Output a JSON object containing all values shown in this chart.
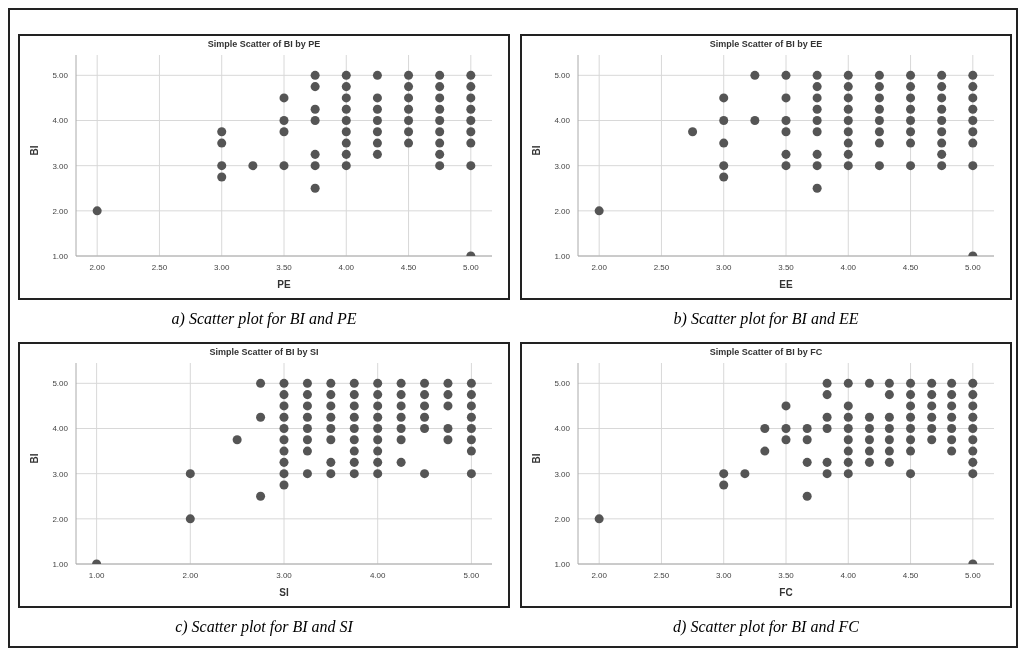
{
  "chart_data": [
    {
      "type": "scatter",
      "title": "Simple Scatter of BI by PE",
      "xlabel": "PE",
      "ylabel": "BI",
      "annotations": [
        "a) Scatter plot for BI and PE"
      ],
      "grid": true,
      "marker": "circle",
      "xlim": [
        1.83,
        5.17
      ],
      "ylim": [
        1,
        5.45
      ],
      "xticks": [
        {
          "value": 2,
          "label": "2.00"
        },
        {
          "value": 2.5,
          "label": "2.50"
        },
        {
          "value": 3,
          "label": "3.00"
        },
        {
          "value": 3.5,
          "label": "3.50"
        },
        {
          "value": 4,
          "label": "4.00"
        },
        {
          "value": 4.5,
          "label": "4.50"
        },
        {
          "value": 5,
          "label": "5.00"
        }
      ],
      "yticks": [
        {
          "value": 1,
          "label": "1.00"
        },
        {
          "value": 2,
          "label": "2.00"
        },
        {
          "value": 3,
          "label": "3.00"
        },
        {
          "value": 4,
          "label": "4.00"
        },
        {
          "value": 5,
          "label": "5.00"
        }
      ],
      "series": [
        {
          "color": "#555555",
          "x": [
            2,
            3,
            3,
            3,
            3,
            3.25,
            3.5,
            3.5,
            3.5,
            3.5,
            3.75,
            3.75,
            3.75,
            3.75,
            3.75,
            3.75,
            3.75,
            4,
            4,
            4,
            4,
            4,
            4,
            4,
            4,
            4,
            4.25,
            4.25,
            4.25,
            4.25,
            4.25,
            4.25,
            4.25,
            4.5,
            4.5,
            4.5,
            4.5,
            4.5,
            4.5,
            4.5,
            4.75,
            4.75,
            4.75,
            4.75,
            4.75,
            4.75,
            4.75,
            4.75,
            4.75,
            5,
            5,
            5,
            5,
            5,
            5,
            5,
            5,
            5
          ],
          "values": [
            2,
            3.75,
            3.5,
            3,
            2.75,
            3,
            4.5,
            4,
            3.75,
            3,
            5,
            4.75,
            4.25,
            4,
            3.25,
            3,
            2.5,
            5,
            4.75,
            4.5,
            4.25,
            4,
            3.75,
            3.5,
            3.25,
            3,
            5,
            4.5,
            4.25,
            4,
            3.75,
            3.5,
            3.25,
            5,
            4.75,
            4.5,
            4.25,
            4,
            3.75,
            3.5,
            5,
            4.75,
            4.5,
            4.25,
            4,
            3.75,
            3.5,
            3.25,
            3,
            5,
            4.75,
            4.5,
            4.25,
            4,
            3.75,
            3.5,
            3,
            1
          ]
        }
      ]
    },
    {
      "type": "scatter",
      "title": "Simple Scatter of BI by EE",
      "xlabel": "EE",
      "ylabel": "BI",
      "annotations": [
        "b) Scatter plot for BI and EE"
      ],
      "grid": true,
      "marker": "circle",
      "xlim": [
        1.83,
        5.17
      ],
      "ylim": [
        1,
        5.45
      ],
      "xticks": [
        {
          "value": 2,
          "label": "2.00"
        },
        {
          "value": 2.5,
          "label": "2.50"
        },
        {
          "value": 3,
          "label": "3.00"
        },
        {
          "value": 3.5,
          "label": "3.50"
        },
        {
          "value": 4,
          "label": "4.00"
        },
        {
          "value": 4.5,
          "label": "4.50"
        },
        {
          "value": 5,
          "label": "5.00"
        }
      ],
      "yticks": [
        {
          "value": 1,
          "label": "1.00"
        },
        {
          "value": 2,
          "label": "2.00"
        },
        {
          "value": 3,
          "label": "3.00"
        },
        {
          "value": 4,
          "label": "4.00"
        },
        {
          "value": 5,
          "label": "5.00"
        }
      ],
      "series": [
        {
          "color": "#555555",
          "x": [
            2,
            2.75,
            3,
            3,
            3,
            3,
            3,
            3.25,
            3.25,
            3.5,
            3.5,
            3.5,
            3.5,
            3.5,
            3.5,
            3.75,
            3.75,
            3.75,
            3.75,
            3.75,
            3.75,
            3.75,
            3.75,
            3.75,
            4,
            4,
            4,
            4,
            4,
            4,
            4,
            4,
            4,
            4.25,
            4.25,
            4.25,
            4.25,
            4.25,
            4.25,
            4.25,
            4.25,
            4.5,
            4.5,
            4.5,
            4.5,
            4.5,
            4.5,
            4.5,
            4.5,
            4.75,
            4.75,
            4.75,
            4.75,
            4.75,
            4.75,
            4.75,
            4.75,
            4.75,
            5,
            5,
            5,
            5,
            5,
            5,
            5,
            5,
            5
          ],
          "values": [
            2,
            3.75,
            4.5,
            4,
            3.5,
            3,
            2.75,
            5,
            4,
            5,
            4.5,
            4,
            3.75,
            3.25,
            3,
            5,
            4.75,
            4.5,
            4.25,
            4,
            3.75,
            3.25,
            3,
            2.5,
            5,
            4.75,
            4.5,
            4.25,
            4,
            3.75,
            3.5,
            3.25,
            3,
            5,
            4.75,
            4.5,
            4.25,
            4,
            3.75,
            3.5,
            3,
            5,
            4.75,
            4.5,
            4.25,
            4,
            3.75,
            3.5,
            3,
            5,
            4.75,
            4.5,
            4.25,
            4,
            3.75,
            3.5,
            3.25,
            3,
            5,
            4.75,
            4.5,
            4.25,
            4,
            3.75,
            3.5,
            3,
            1
          ]
        }
      ]
    },
    {
      "type": "scatter",
      "title": "Simple Scatter of BI by SI",
      "xlabel": "SI",
      "ylabel": "BI",
      "annotations": [
        "c) Scatter plot for BI and SI"
      ],
      "grid": true,
      "marker": "circle",
      "xlim": [
        0.78,
        5.22
      ],
      "ylim": [
        1,
        5.45
      ],
      "xticks": [
        {
          "value": 1,
          "label": "1.00"
        },
        {
          "value": 2,
          "label": "2.00"
        },
        {
          "value": 3,
          "label": "3.00"
        },
        {
          "value": 4,
          "label": "4.00"
        },
        {
          "value": 5,
          "label": "5.00"
        }
      ],
      "yticks": [
        {
          "value": 1,
          "label": "1.00"
        },
        {
          "value": 2,
          "label": "2.00"
        },
        {
          "value": 3,
          "label": "3.00"
        },
        {
          "value": 4,
          "label": "4.00"
        },
        {
          "value": 5,
          "label": "5.00"
        }
      ],
      "series": [
        {
          "color": "#555555",
          "x": [
            1,
            2,
            2,
            2.5,
            2.75,
            2.75,
            2.75,
            3,
            3,
            3,
            3,
            3,
            3,
            3,
            3,
            3,
            3,
            3.25,
            3.25,
            3.25,
            3.25,
            3.25,
            3.25,
            3.25,
            3.25,
            3.5,
            3.5,
            3.5,
            3.5,
            3.5,
            3.5,
            3.5,
            3.5,
            3.75,
            3.75,
            3.75,
            3.75,
            3.75,
            3.75,
            3.75,
            3.75,
            3.75,
            4,
            4,
            4,
            4,
            4,
            4,
            4,
            4,
            4,
            4.25,
            4.25,
            4.25,
            4.25,
            4.25,
            4.25,
            4.25,
            4.5,
            4.5,
            4.5,
            4.5,
            4.5,
            4.5,
            4.75,
            4.75,
            4.75,
            4.75,
            4.75,
            5,
            5,
            5,
            5,
            5,
            5,
            5,
            5
          ],
          "values": [
            1,
            3,
            2,
            3.75,
            5,
            4.25,
            2.5,
            5,
            4.75,
            4.5,
            4.25,
            4,
            3.75,
            3.5,
            3.25,
            3,
            2.75,
            5,
            4.75,
            4.5,
            4.25,
            4,
            3.75,
            3.5,
            3,
            5,
            4.75,
            4.5,
            4.25,
            4,
            3.75,
            3.25,
            3,
            5,
            4.75,
            4.5,
            4.25,
            4,
            3.75,
            3.5,
            3.25,
            3,
            5,
            4.75,
            4.5,
            4.25,
            4,
            3.75,
            3.5,
            3.25,
            3,
            5,
            4.75,
            4.5,
            4.25,
            4,
            3.75,
            3.25,
            5,
            4.75,
            4.5,
            4.25,
            4,
            3,
            5,
            4.75,
            4.5,
            4,
            3.75,
            5,
            4.75,
            4.5,
            4.25,
            4,
            3.75,
            3.5,
            3
          ]
        }
      ]
    },
    {
      "type": "scatter",
      "title": "Simple Scatter of BI by FC",
      "xlabel": "FC",
      "ylabel": "BI",
      "annotations": [
        "d) Scatter plot for BI and FC"
      ],
      "grid": true,
      "marker": "circle",
      "xlim": [
        1.83,
        5.17
      ],
      "ylim": [
        1,
        5.45
      ],
      "xticks": [
        {
          "value": 2,
          "label": "2.00"
        },
        {
          "value": 2.5,
          "label": "2.50"
        },
        {
          "value": 3,
          "label": "3.00"
        },
        {
          "value": 3.5,
          "label": "3.50"
        },
        {
          "value": 4,
          "label": "4.00"
        },
        {
          "value": 4.5,
          "label": "4.50"
        },
        {
          "value": 5,
          "label": "5.00"
        }
      ],
      "yticks": [
        {
          "value": 1,
          "label": "1.00"
        },
        {
          "value": 2,
          "label": "2.00"
        },
        {
          "value": 3,
          "label": "3.00"
        },
        {
          "value": 4,
          "label": "4.00"
        },
        {
          "value": 5,
          "label": "5.00"
        }
      ],
      "series": [
        {
          "color": "#555555",
          "x": [
            2,
            3,
            3,
            3.17,
            3.33,
            3.33,
            3.5,
            3.5,
            3.5,
            3.67,
            3.67,
            3.67,
            3.67,
            3.83,
            3.83,
            3.83,
            3.83,
            3.83,
            3.83,
            4,
            4,
            4,
            4,
            4,
            4,
            4,
            4,
            4.17,
            4.17,
            4.17,
            4.17,
            4.17,
            4.17,
            4.33,
            4.33,
            4.33,
            4.33,
            4.33,
            4.33,
            4.33,
            4.5,
            4.5,
            4.5,
            4.5,
            4.5,
            4.5,
            4.5,
            4.5,
            4.67,
            4.67,
            4.67,
            4.67,
            4.67,
            4.67,
            4.83,
            4.83,
            4.83,
            4.83,
            4.83,
            4.83,
            4.83,
            5,
            5,
            5,
            5,
            5,
            5,
            5,
            5,
            5,
            5
          ],
          "values": [
            2,
            3,
            2.75,
            3,
            4,
            3.5,
            4.5,
            4,
            3.75,
            4,
            3.75,
            3.25,
            2.5,
            5,
            4.75,
            4.25,
            4,
            3.25,
            3,
            5,
            4.5,
            4.25,
            4,
            3.75,
            3.5,
            3.25,
            3,
            5,
            4.25,
            4,
            3.75,
            3.5,
            3.25,
            5,
            4.75,
            4.25,
            4,
            3.75,
            3.5,
            3.25,
            5,
            4.75,
            4.5,
            4.25,
            4,
            3.75,
            3.5,
            3,
            5,
            4.75,
            4.5,
            4.25,
            4,
            3.75,
            5,
            4.75,
            4.5,
            4.25,
            4,
            3.75,
            3.5,
            5,
            4.75,
            4.5,
            4.25,
            4,
            3.75,
            3.5,
            3.25,
            3,
            1
          ]
        }
      ]
    }
  ]
}
